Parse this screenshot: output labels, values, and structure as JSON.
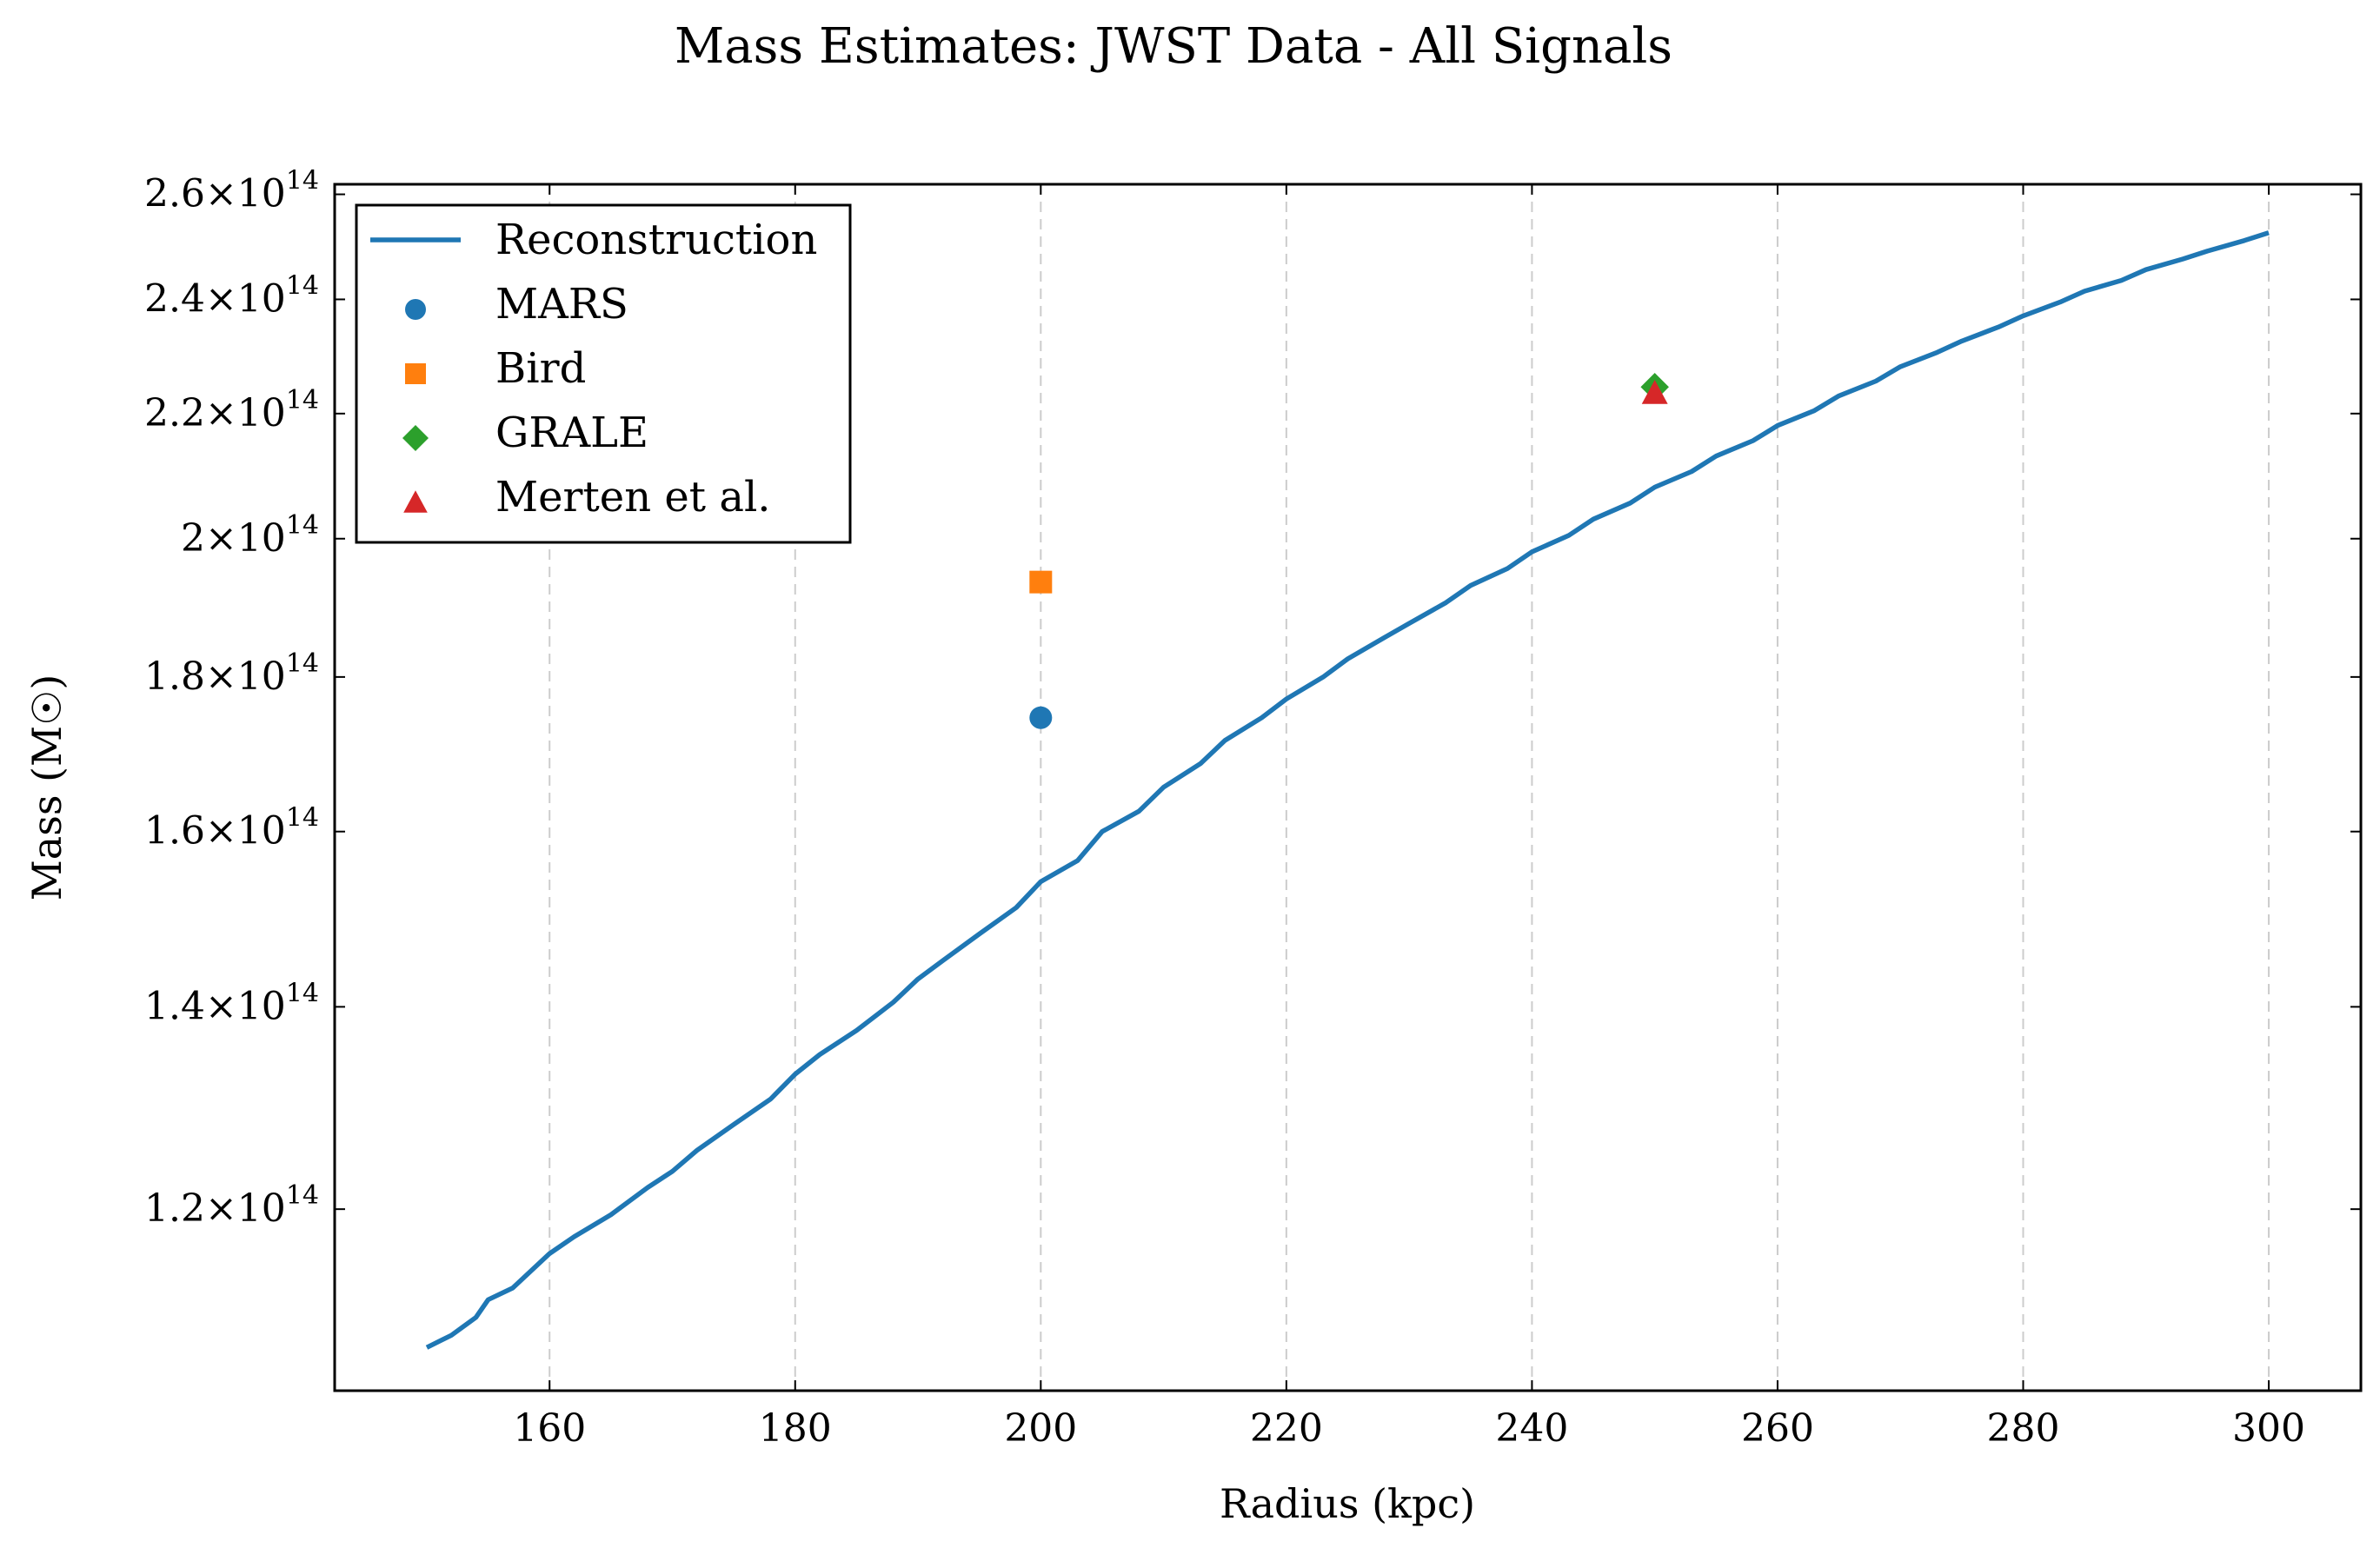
{
  "chart_data": {
    "type": "line",
    "title": "Mass Estimates: JWST Data - All Signals",
    "xlabel": "Radius (kpc)",
    "ylabel": "Mass (M☉)",
    "xlim": [
      142.5,
      307.5
    ],
    "ylim": [
      104500000000000.0,
      262000000000000.0
    ],
    "yscale": "log",
    "grid": "x-only dashed",
    "legend_position": "top-left",
    "x_ticks": [
      160,
      180,
      200,
      220,
      240,
      260,
      280,
      300
    ],
    "x_tick_labels": [
      "160",
      "180",
      "200",
      "220",
      "240",
      "260",
      "280",
      "300"
    ],
    "y_ticks": [
      {
        "value": 120000000000000.0,
        "mantissa": "1.2",
        "exponent": "14"
      },
      {
        "value": 140000000000000.0,
        "mantissa": "1.4",
        "exponent": "14"
      },
      {
        "value": 160000000000000.0,
        "mantissa": "1.6",
        "exponent": "14"
      },
      {
        "value": 180000000000000.0,
        "mantissa": "1.8",
        "exponent": "14"
      },
      {
        "value": 200000000000000.0,
        "mantissa": "2",
        "exponent": "14"
      },
      {
        "value": 220000000000000.0,
        "mantissa": "2.2",
        "exponent": "14"
      },
      {
        "value": 240000000000000.0,
        "mantissa": "2.4",
        "exponent": "14"
      },
      {
        "value": 260000000000000.0,
        "mantissa": "2.6",
        "exponent": "14"
      }
    ],
    "series": [
      {
        "name": "Reconstruction",
        "kind": "line",
        "color": "#1f77b4",
        "points": [
          [
            150,
            108000000000000.0
          ],
          [
            152,
            109000000000000.0
          ],
          [
            154,
            110500000000000.0
          ],
          [
            155,
            112000000000000.0
          ],
          [
            157,
            113000000000000.0
          ],
          [
            160,
            116000000000000.0
          ],
          [
            162,
            117500000000000.0
          ],
          [
            165,
            119500000000000.0
          ],
          [
            168,
            122000000000000.0
          ],
          [
            170,
            123500000000000.0
          ],
          [
            172,
            125500000000000.0
          ],
          [
            175,
            128000000000000.0
          ],
          [
            178,
            130500000000000.0
          ],
          [
            180,
            133000000000000.0
          ],
          [
            182,
            135000000000000.0
          ],
          [
            185,
            137500000000000.0
          ],
          [
            188,
            140500000000000.0
          ],
          [
            190,
            143000000000000.0
          ],
          [
            192,
            145000000000000.0
          ],
          [
            195,
            148000000000000.0
          ],
          [
            198,
            151000000000000.0
          ],
          [
            200,
            154000000000000.0
          ],
          [
            203,
            156500000000000.0
          ],
          [
            205,
            160000000000000.0
          ],
          [
            208,
            162500000000000.0
          ],
          [
            210,
            165500000000000.0
          ],
          [
            213,
            168500000000000.0
          ],
          [
            215,
            171500000000000.0
          ],
          [
            218,
            174500000000000.0
          ],
          [
            220,
            177000000000000.0
          ],
          [
            223,
            180000000000000.0
          ],
          [
            225,
            182500000000000.0
          ],
          [
            228,
            185500000000000.0
          ],
          [
            230,
            187500000000000.0
          ],
          [
            233,
            190500000000000.0
          ],
          [
            235,
            193000000000000.0
          ],
          [
            238,
            195500000000000.0
          ],
          [
            240,
            198000000000000.0
          ],
          [
            243,
            200500000000000.0
          ],
          [
            245,
            203000000000000.0
          ],
          [
            248,
            205500000000000.0
          ],
          [
            250,
            208000000000000.0
          ],
          [
            253,
            210500000000000.0
          ],
          [
            255,
            213000000000000.0
          ],
          [
            258,
            215500000000000.0
          ],
          [
            260,
            218000000000000.0
          ],
          [
            263,
            220500000000000.0
          ],
          [
            265,
            223000000000000.0
          ],
          [
            268,
            225500000000000.0
          ],
          [
            270,
            228000000000000.0
          ],
          [
            273,
            230500000000000.0
          ],
          [
            275,
            232500000000000.0
          ],
          [
            278,
            235000000000000.0
          ],
          [
            280,
            237000000000000.0
          ],
          [
            283,
            239500000000000.0
          ],
          [
            285,
            241500000000000.0
          ],
          [
            288,
            243500000000000.0
          ],
          [
            290,
            245500000000000.0
          ],
          [
            293,
            247500000000000.0
          ],
          [
            295,
            249000000000000.0
          ],
          [
            298,
            251000000000000.0
          ],
          [
            300,
            252500000000000.0
          ]
        ]
      },
      {
        "name": "MARS",
        "kind": "marker",
        "marker": "circle",
        "color": "#1f77b4",
        "points": [
          [
            200,
            174500000000000.0
          ]
        ]
      },
      {
        "name": "Bird",
        "kind": "marker",
        "marker": "square",
        "color": "#ff7f0e",
        "points": [
          [
            200,
            193500000000000.0
          ]
        ]
      },
      {
        "name": "GRALE",
        "kind": "marker",
        "marker": "diamond",
        "color": "#2ca02c",
        "points": [
          [
            250,
            224500000000000.0
          ]
        ]
      },
      {
        "name": "Merten et al.",
        "kind": "marker",
        "marker": "triangle",
        "color": "#d62728",
        "points": [
          [
            250,
            223500000000000.0
          ]
        ]
      }
    ]
  }
}
